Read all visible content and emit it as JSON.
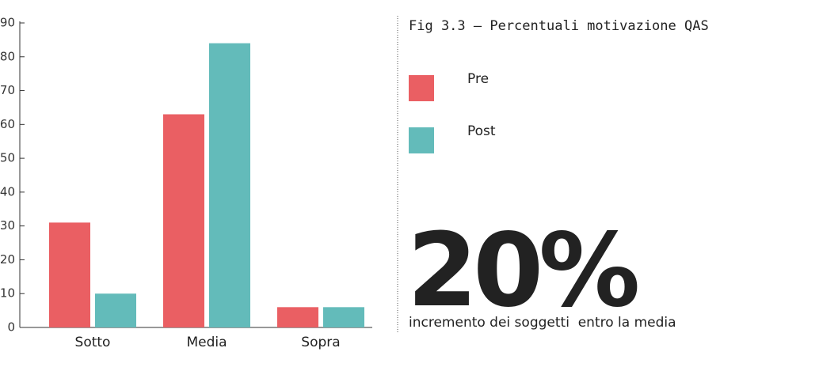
{
  "chart_data": {
    "type": "bar",
    "title": "Fig 3.3 – Percentuali motivazione QAS",
    "categories": [
      "Sotto",
      "Media",
      "Sopra"
    ],
    "series": [
      {
        "name": "Pre",
        "color": "#ea5f63",
        "values": [
          31,
          63,
          6
        ]
      },
      {
        "name": "Post",
        "color": "#63bbba",
        "values": [
          10,
          84,
          6
        ]
      }
    ],
    "ylim": [
      0,
      90
    ],
    "yticks": [
      0,
      10,
      20,
      30,
      40,
      50,
      60,
      70,
      80,
      90
    ],
    "grid": false,
    "legend": "right",
    "highlight": "20%",
    "highlight_caption": "incremento dei soggetti  entro la media"
  }
}
